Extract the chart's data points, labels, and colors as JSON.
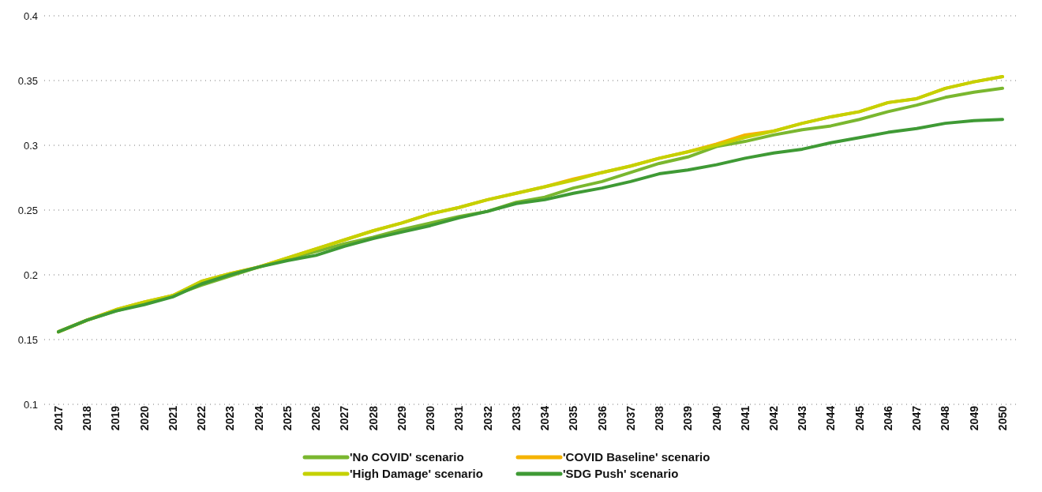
{
  "chart_data": {
    "type": "line",
    "categories": [
      "2017",
      "2018",
      "2019",
      "2020",
      "2021",
      "2022",
      "2023",
      "2024",
      "2025",
      "2026",
      "2027",
      "2028",
      "2029",
      "2030",
      "2031",
      "2032",
      "2033",
      "2034",
      "2035",
      "2036",
      "2037",
      "2038",
      "2039",
      "2040",
      "2041",
      "2042",
      "2043",
      "2044",
      "2045",
      "2046",
      "2047",
      "2048",
      "2049",
      "2050"
    ],
    "series": [
      {
        "name": "'No COVID' scenario",
        "color": "#7ab72f",
        "values": [
          0.156,
          0.165,
          0.172,
          0.178,
          0.184,
          0.192,
          0.199,
          0.206,
          0.212,
          0.218,
          0.224,
          0.229,
          0.235,
          0.24,
          0.245,
          0.249,
          0.256,
          0.26,
          0.267,
          0.272,
          0.279,
          0.286,
          0.291,
          0.299,
          0.303,
          0.308,
          0.312,
          0.315,
          0.32,
          0.326,
          0.331,
          0.337,
          0.341,
          0.344
        ]
      },
      {
        "name": "'COVID Baseline' scenario",
        "color": "#f5b300",
        "values": [
          0.156,
          0.165,
          0.173,
          0.179,
          0.184,
          0.195,
          0.201,
          0.206,
          0.213,
          0.22,
          0.227,
          0.234,
          0.24,
          0.247,
          0.252,
          0.258,
          0.263,
          0.268,
          0.274,
          0.279,
          0.284,
          0.29,
          0.295,
          0.301,
          0.308,
          0.311,
          0.317,
          0.322,
          0.326,
          0.333,
          0.336,
          0.344,
          0.349,
          0.353
        ]
      },
      {
        "name": "'High Damage' scenario",
        "color": "#c5d100",
        "values": [
          0.156,
          0.165,
          0.173,
          0.179,
          0.184,
          0.195,
          0.201,
          0.206,
          0.213,
          0.22,
          0.227,
          0.234,
          0.24,
          0.247,
          0.252,
          0.258,
          0.263,
          0.268,
          0.273,
          0.279,
          0.284,
          0.29,
          0.295,
          0.3,
          0.306,
          0.311,
          0.317,
          0.322,
          0.326,
          0.333,
          0.336,
          0.344,
          0.349,
          0.353
        ]
      },
      {
        "name": "'SDG Push' scenario",
        "color": "#3f9a35",
        "values": [
          0.156,
          0.165,
          0.172,
          0.177,
          0.183,
          0.193,
          0.2,
          0.206,
          0.211,
          0.215,
          0.222,
          0.228,
          0.233,
          0.238,
          0.244,
          0.249,
          0.255,
          0.258,
          0.263,
          0.267,
          0.272,
          0.278,
          0.281,
          0.285,
          0.29,
          0.294,
          0.297,
          0.302,
          0.306,
          0.31,
          0.313,
          0.317,
          0.319,
          0.32
        ]
      }
    ],
    "ylim": [
      0.1,
      0.4
    ],
    "yticks": [
      0.1,
      0.15,
      0.2,
      0.25,
      0.3,
      0.35,
      0.4
    ],
    "grid": "y",
    "legend": "bottom",
    "marker": "none",
    "line_style": "solid"
  }
}
